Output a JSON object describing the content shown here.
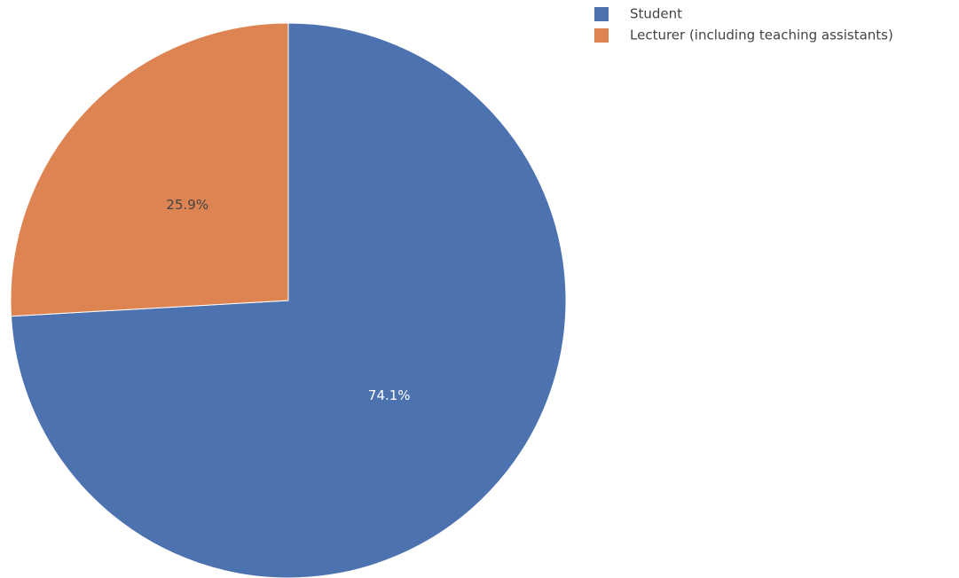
{
  "chart_data": {
    "type": "pie",
    "title": "",
    "start_angle_deg": 0,
    "direction": "clockwise",
    "legend_position": "top-right",
    "slices": [
      {
        "name": "Student",
        "value": 74.1,
        "label": "74.1%",
        "color": "#4C72B0",
        "label_color": "#ffffff"
      },
      {
        "name": "Lecturer (including teaching assistants)",
        "value": 25.9,
        "label": "25.9%",
        "color": "#DD8452",
        "label_color": "#444444"
      }
    ]
  }
}
